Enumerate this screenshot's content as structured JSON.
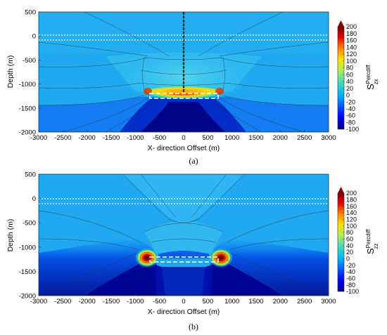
{
  "figure": {
    "panels": [
      {
        "label": "(a)",
        "ylabel": "Depth (m)",
        "xlabel": "X- direction Offset (m)",
        "colorbar_label_main": "S",
        "colorbar_label_sup": "Percdiff",
        "colorbar_label_sub": "zx"
      },
      {
        "label": "(b)",
        "ylabel": "Depth (m)",
        "xlabel": "X- direction Offset (m)",
        "colorbar_label_main": "S",
        "colorbar_label_sup": "Percdiff",
        "colorbar_label_sub": "zz"
      }
    ]
  },
  "chart_data": [
    {
      "type": "heatmap",
      "panel": "a",
      "quantity": "S^Percdiff_zx",
      "xlabel": "X- direction Offset (m)",
      "ylabel": "Depth (m)",
      "xlim": [
        -3000,
        3000
      ],
      "ylim": [
        -2000,
        500
      ],
      "xticks": [
        -3000,
        -2500,
        -2000,
        -1500,
        -1000,
        -500,
        0,
        500,
        1000,
        1500,
        2000,
        2500,
        3000
      ],
      "yticks": [
        500,
        0,
        -500,
        -1000,
        -1500,
        -2000
      ],
      "color_range": [
        -100,
        200
      ],
      "colorbar_ticks": [
        200,
        180,
        160,
        140,
        120,
        100,
        80,
        60,
        40,
        20,
        0,
        -20,
        -40,
        -60,
        -80,
        -100
      ],
      "colormap": "jet",
      "features": {
        "wellbore": {
          "x": 0,
          "depth_range": [
            -1200,
            500
          ]
        },
        "reservoir_outline": {
          "x_range": [
            -700,
            700
          ],
          "depth_range": [
            -1300,
            -1200
          ]
        },
        "white_dotted_lines_depth": [
          0,
          -100
        ],
        "hotspot": "reservoir top edge"
      }
    },
    {
      "type": "heatmap",
      "panel": "b",
      "quantity": "S^Percdiff_zz",
      "xlabel": "X- direction Offset (m)",
      "ylabel": "Depth (m)",
      "xlim": [
        -3000,
        3000
      ],
      "ylim": [
        -2000,
        500
      ],
      "xticks": [
        -3000,
        -2500,
        -2000,
        -1500,
        -1000,
        -500,
        0,
        500,
        1000,
        1500,
        2000,
        2500,
        3000
      ],
      "yticks": [
        500,
        0,
        -500,
        -1000,
        -1500,
        -2000
      ],
      "color_range": [
        -100,
        200
      ],
      "colorbar_ticks": [
        200,
        180,
        160,
        140,
        120,
        100,
        80,
        60,
        40,
        20,
        0,
        -20,
        -40,
        -60,
        -80,
        -100
      ],
      "colormap": "jet",
      "features": {
        "reservoir_outline": {
          "x_range": [
            -700,
            700
          ],
          "depth_range": [
            -1300,
            -1200
          ]
        },
        "white_dotted_lines_depth": [
          0,
          -100
        ],
        "hotspot": "reservoir corners at x=±750"
      }
    }
  ],
  "colors": {
    "background_field": "#1ea6ef",
    "deep_low": "#00007a",
    "high": "#8a0000"
  }
}
